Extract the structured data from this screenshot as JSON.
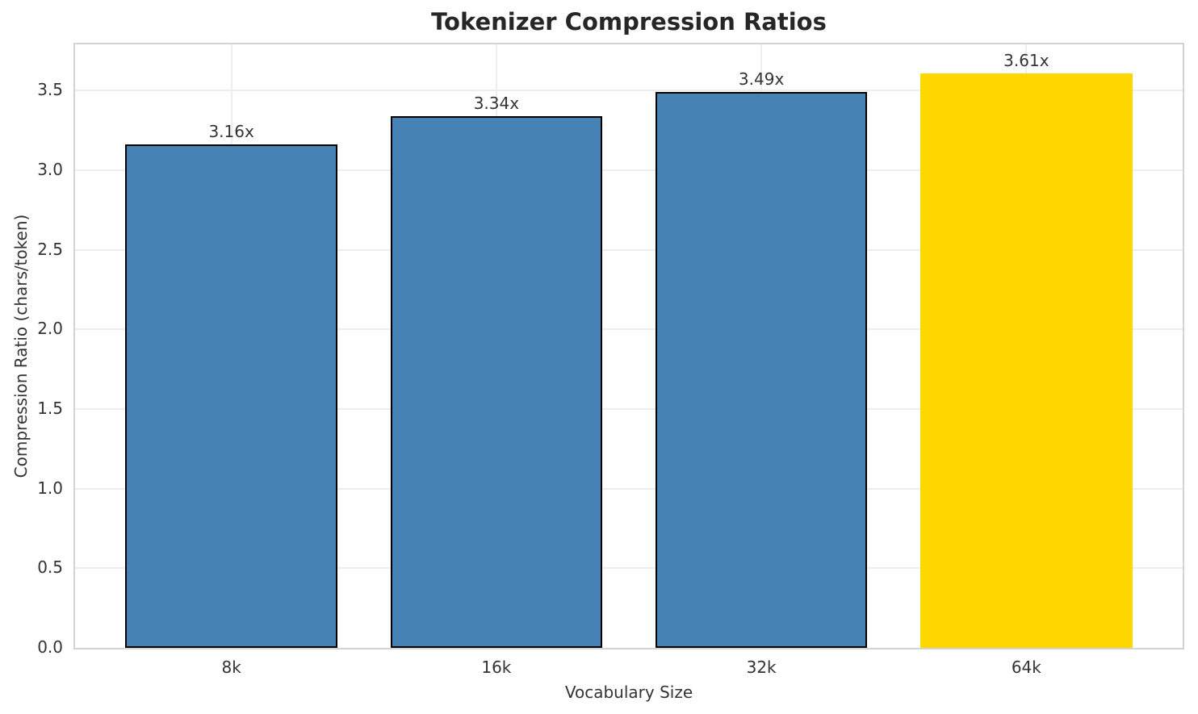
{
  "chart_data": {
    "type": "bar",
    "title": "Tokenizer Compression Ratios",
    "xlabel": "Vocabulary Size",
    "ylabel": "Compression Ratio (chars/token)",
    "categories": [
      "8k",
      "16k",
      "32k",
      "64k"
    ],
    "values": [
      3.16,
      3.34,
      3.49,
      3.61
    ],
    "bar_labels": [
      "3.16x",
      "3.34x",
      "3.49x",
      "3.61x"
    ],
    "bar_colors": [
      "#4682B4",
      "#4682B4",
      "#4682B4",
      "#FFD700"
    ],
    "bar_edge_colors": [
      "#000000",
      "#000000",
      "#000000",
      "none"
    ],
    "bar_width": 0.8,
    "xlim": [
      -0.59,
      3.59
    ],
    "ylim": [
      0,
      3.79
    ],
    "yticks": [
      0,
      0.5,
      1,
      1.5,
      2,
      2.5,
      3,
      3.5
    ],
    "ytick_labels": [
      "0.0",
      "0.5",
      "1.0",
      "1.5",
      "2.0",
      "2.5",
      "3.0",
      "3.5"
    ],
    "grid": true,
    "grid_color": "#ededed",
    "spine_color": "#d3d3d3",
    "legend_position": "none",
    "highlight_category": "64k"
  }
}
